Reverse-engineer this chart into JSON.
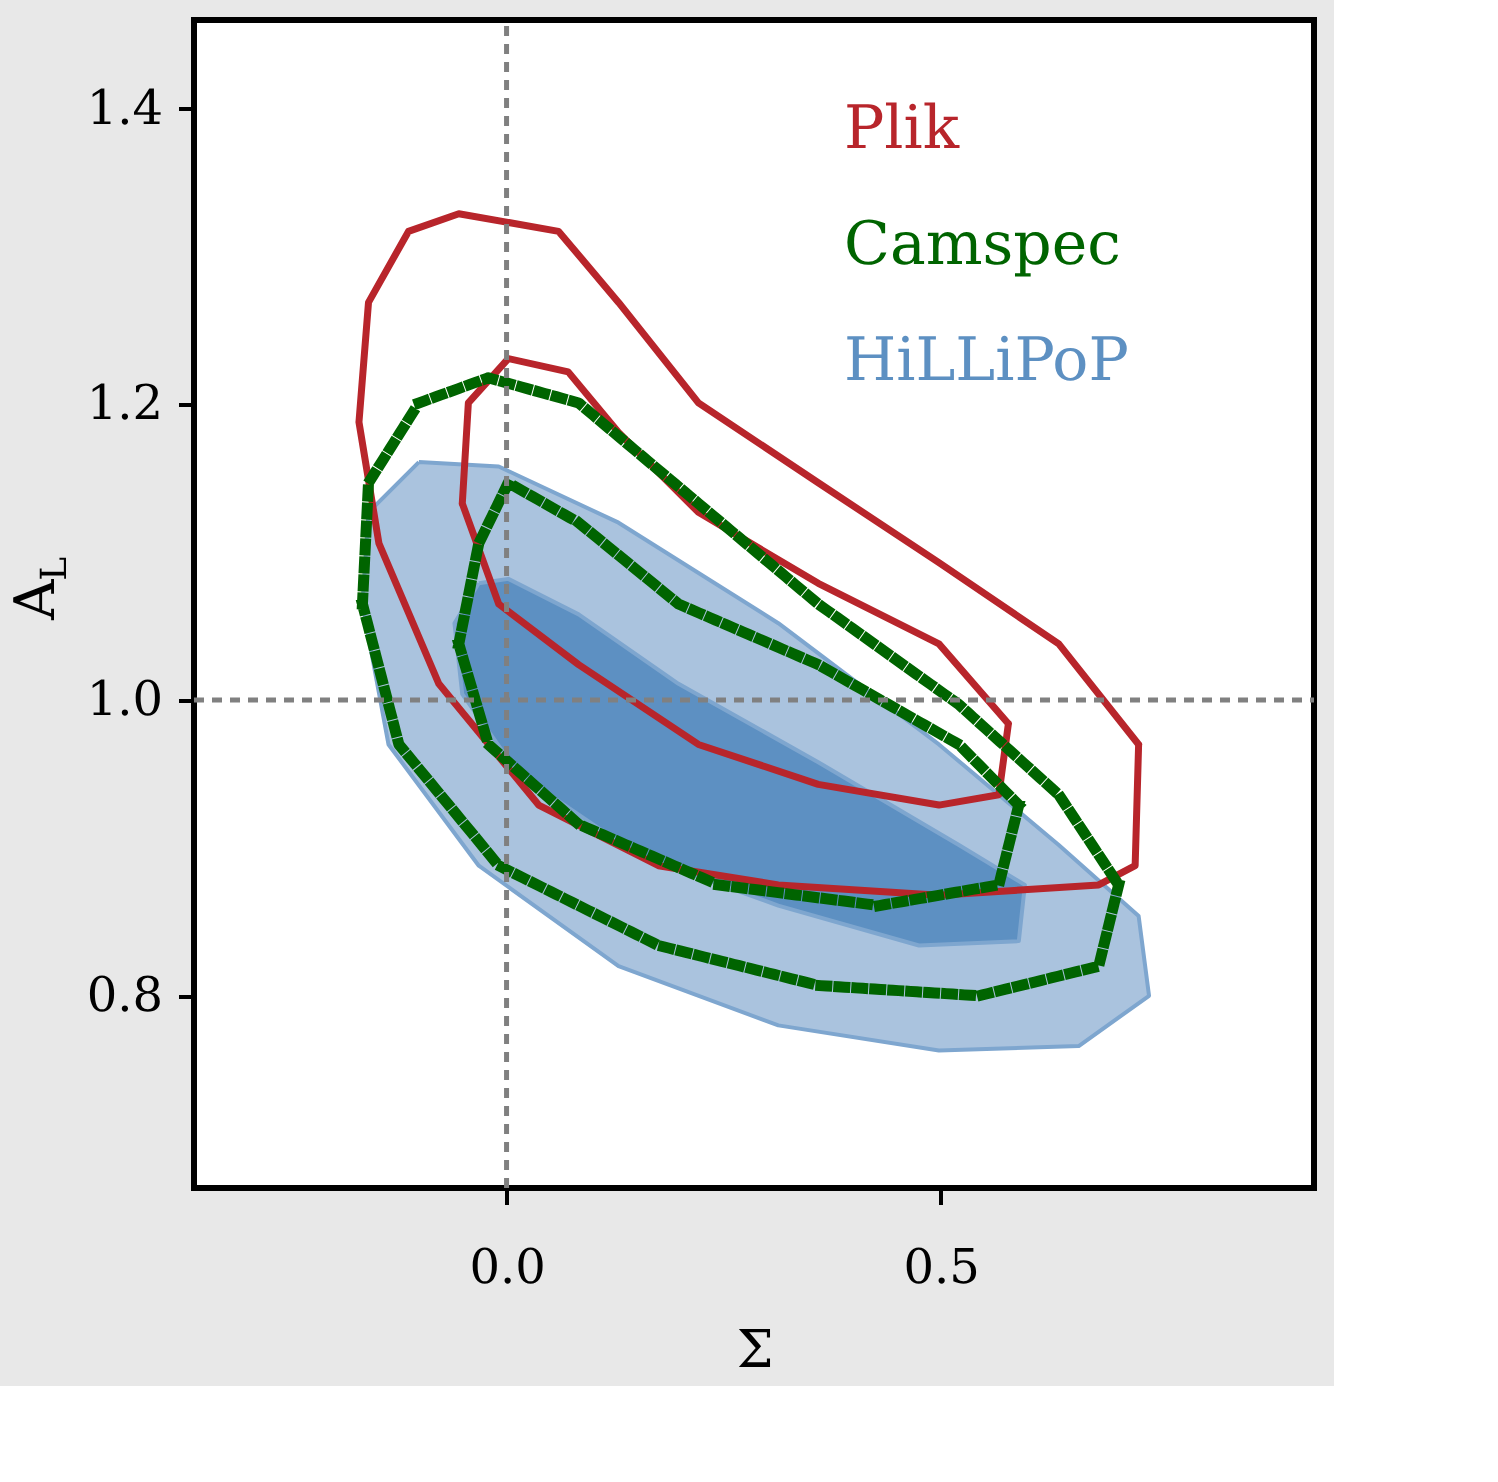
{
  "chart_data": {
    "type": "line",
    "xlabel": "Σ",
    "ylabel": "A$_{L}$",
    "xlim": [
      -0.36,
      0.93
    ],
    "ylim": [
      0.67,
      1.46
    ],
    "xticks": [
      {
        "value": 0.0,
        "label": "0.0"
      },
      0.5
    ],
    "yticks": [
      0.8,
      {
        "value": 1.0,
        "label": "1.0"
      },
      1.2,
      1.4
    ],
    "grid": false,
    "legend": "top right",
    "marker": "none",
    "ref_lines": [
      {
        "axis": "x",
        "value": 0,
        "color": "#808080",
        "line_style": "dashed"
      },
      {
        "axis": "y",
        "value": 1.0,
        "color": "#808080",
        "line_style": "dashed"
      }
    ],
    "series": [
      {
        "name": "Plik",
        "line_style": "solid",
        "color": "#b8252b",
        "x": [
          -0.17,
          -0.159,
          -0.113,
          -0.055,
          0.06,
          0.129,
          0.221,
          0.359,
          0.498,
          0.636,
          0.728,
          null,
          -0.17,
          -0.147,
          -0.078,
          0.037,
          0.175,
          0.313,
          0.498,
          0.682,
          0.724,
          0.728
        ],
        "values": [
          1.188,
          1.269,
          1.317,
          1.329,
          1.317,
          1.269,
          1.201,
          1.147,
          1.093,
          1.038,
          0.97,
          null,
          1.188,
          1.106,
          1.011,
          0.929,
          0.888,
          0.875,
          0.868,
          0.875,
          0.888,
          0.97
        ]
      },
      {
        "line_style": "solid",
        "color": "#b8252b",
        "x": [
          -0.051,
          -0.044,
          0.002,
          0.071,
          0.129,
          0.221,
          0.359,
          0.498,
          0.578,
          null,
          -0.051,
          -0.009,
          0.083,
          0.221,
          0.359,
          0.498,
          0.567,
          0.578
        ],
        "values": [
          1.133,
          1.201,
          1.231,
          1.222,
          1.181,
          1.127,
          1.079,
          1.038,
          0.984,
          null,
          1.133,
          1.065,
          1.024,
          0.97,
          0.943,
          0.929,
          0.936,
          0.984
        ]
      },
      {
        "name": "Camspec",
        "line_style": "dotted",
        "color": "#006400",
        "x": [
          -0.166,
          -0.159,
          -0.101,
          -0.021,
          0.083,
          0.221,
          0.359,
          0.521,
          0.636,
          0.705,
          null,
          -0.166,
          -0.124,
          -0.009,
          0.175,
          0.359,
          0.544,
          0.682,
          0.705
        ],
        "values": [
          1.065,
          1.147,
          1.201,
          1.218,
          1.201,
          1.133,
          1.065,
          0.997,
          0.936,
          0.875,
          null,
          1.065,
          0.97,
          0.888,
          0.834,
          0.807,
          0.8,
          0.82,
          0.875
        ]
      },
      {
        "line_style": "dotted",
        "color": "#006400",
        "x": [
          -0.055,
          -0.032,
          0.002,
          0.083,
          0.198,
          0.359,
          0.521,
          0.59,
          null,
          -0.055,
          -0.021,
          0.083,
          0.244,
          0.429,
          0.567,
          0.59
        ],
        "values": [
          1.038,
          1.106,
          1.147,
          1.12,
          1.065,
          1.024,
          0.97,
          0.929,
          null,
          1.038,
          0.97,
          0.916,
          0.875,
          0.861,
          0.875,
          0.929
        ]
      },
      {
        "type": "area",
        "color": "#aac3de",
        "x": [
          -0.101,
          -0.159,
          -0.166,
          -0.136,
          -0.032,
          0.129,
          0.313,
          0.498,
          0.659,
          0.74,
          0.728,
          0.636,
          0.498,
          0.313,
          0.129,
          -0.009,
          -0.101
        ],
        "values": [
          1.161,
          1.127,
          1.065,
          0.97,
          0.888,
          0.82,
          0.78,
          0.763,
          0.766,
          0.8,
          0.854,
          0.902,
          0.97,
          1.052,
          1.12,
          1.158,
          1.161
        ]
      },
      {
        "name": "HiLLiPoP",
        "type": "area",
        "color": "#5d90c2",
        "x": [
          -0.032,
          -0.06,
          -0.051,
          0.014,
          0.152,
          0.313,
          0.475,
          0.59,
          0.597,
          0.521,
          0.359,
          0.198,
          0.083,
          0.002,
          -0.032
        ],
        "values": [
          1.079,
          1.052,
          1.004,
          0.95,
          0.895,
          0.861,
          0.834,
          0.837,
          0.875,
          0.902,
          0.958,
          1.011,
          1.058,
          1.082,
          1.079
        ]
      }
    ]
  }
}
